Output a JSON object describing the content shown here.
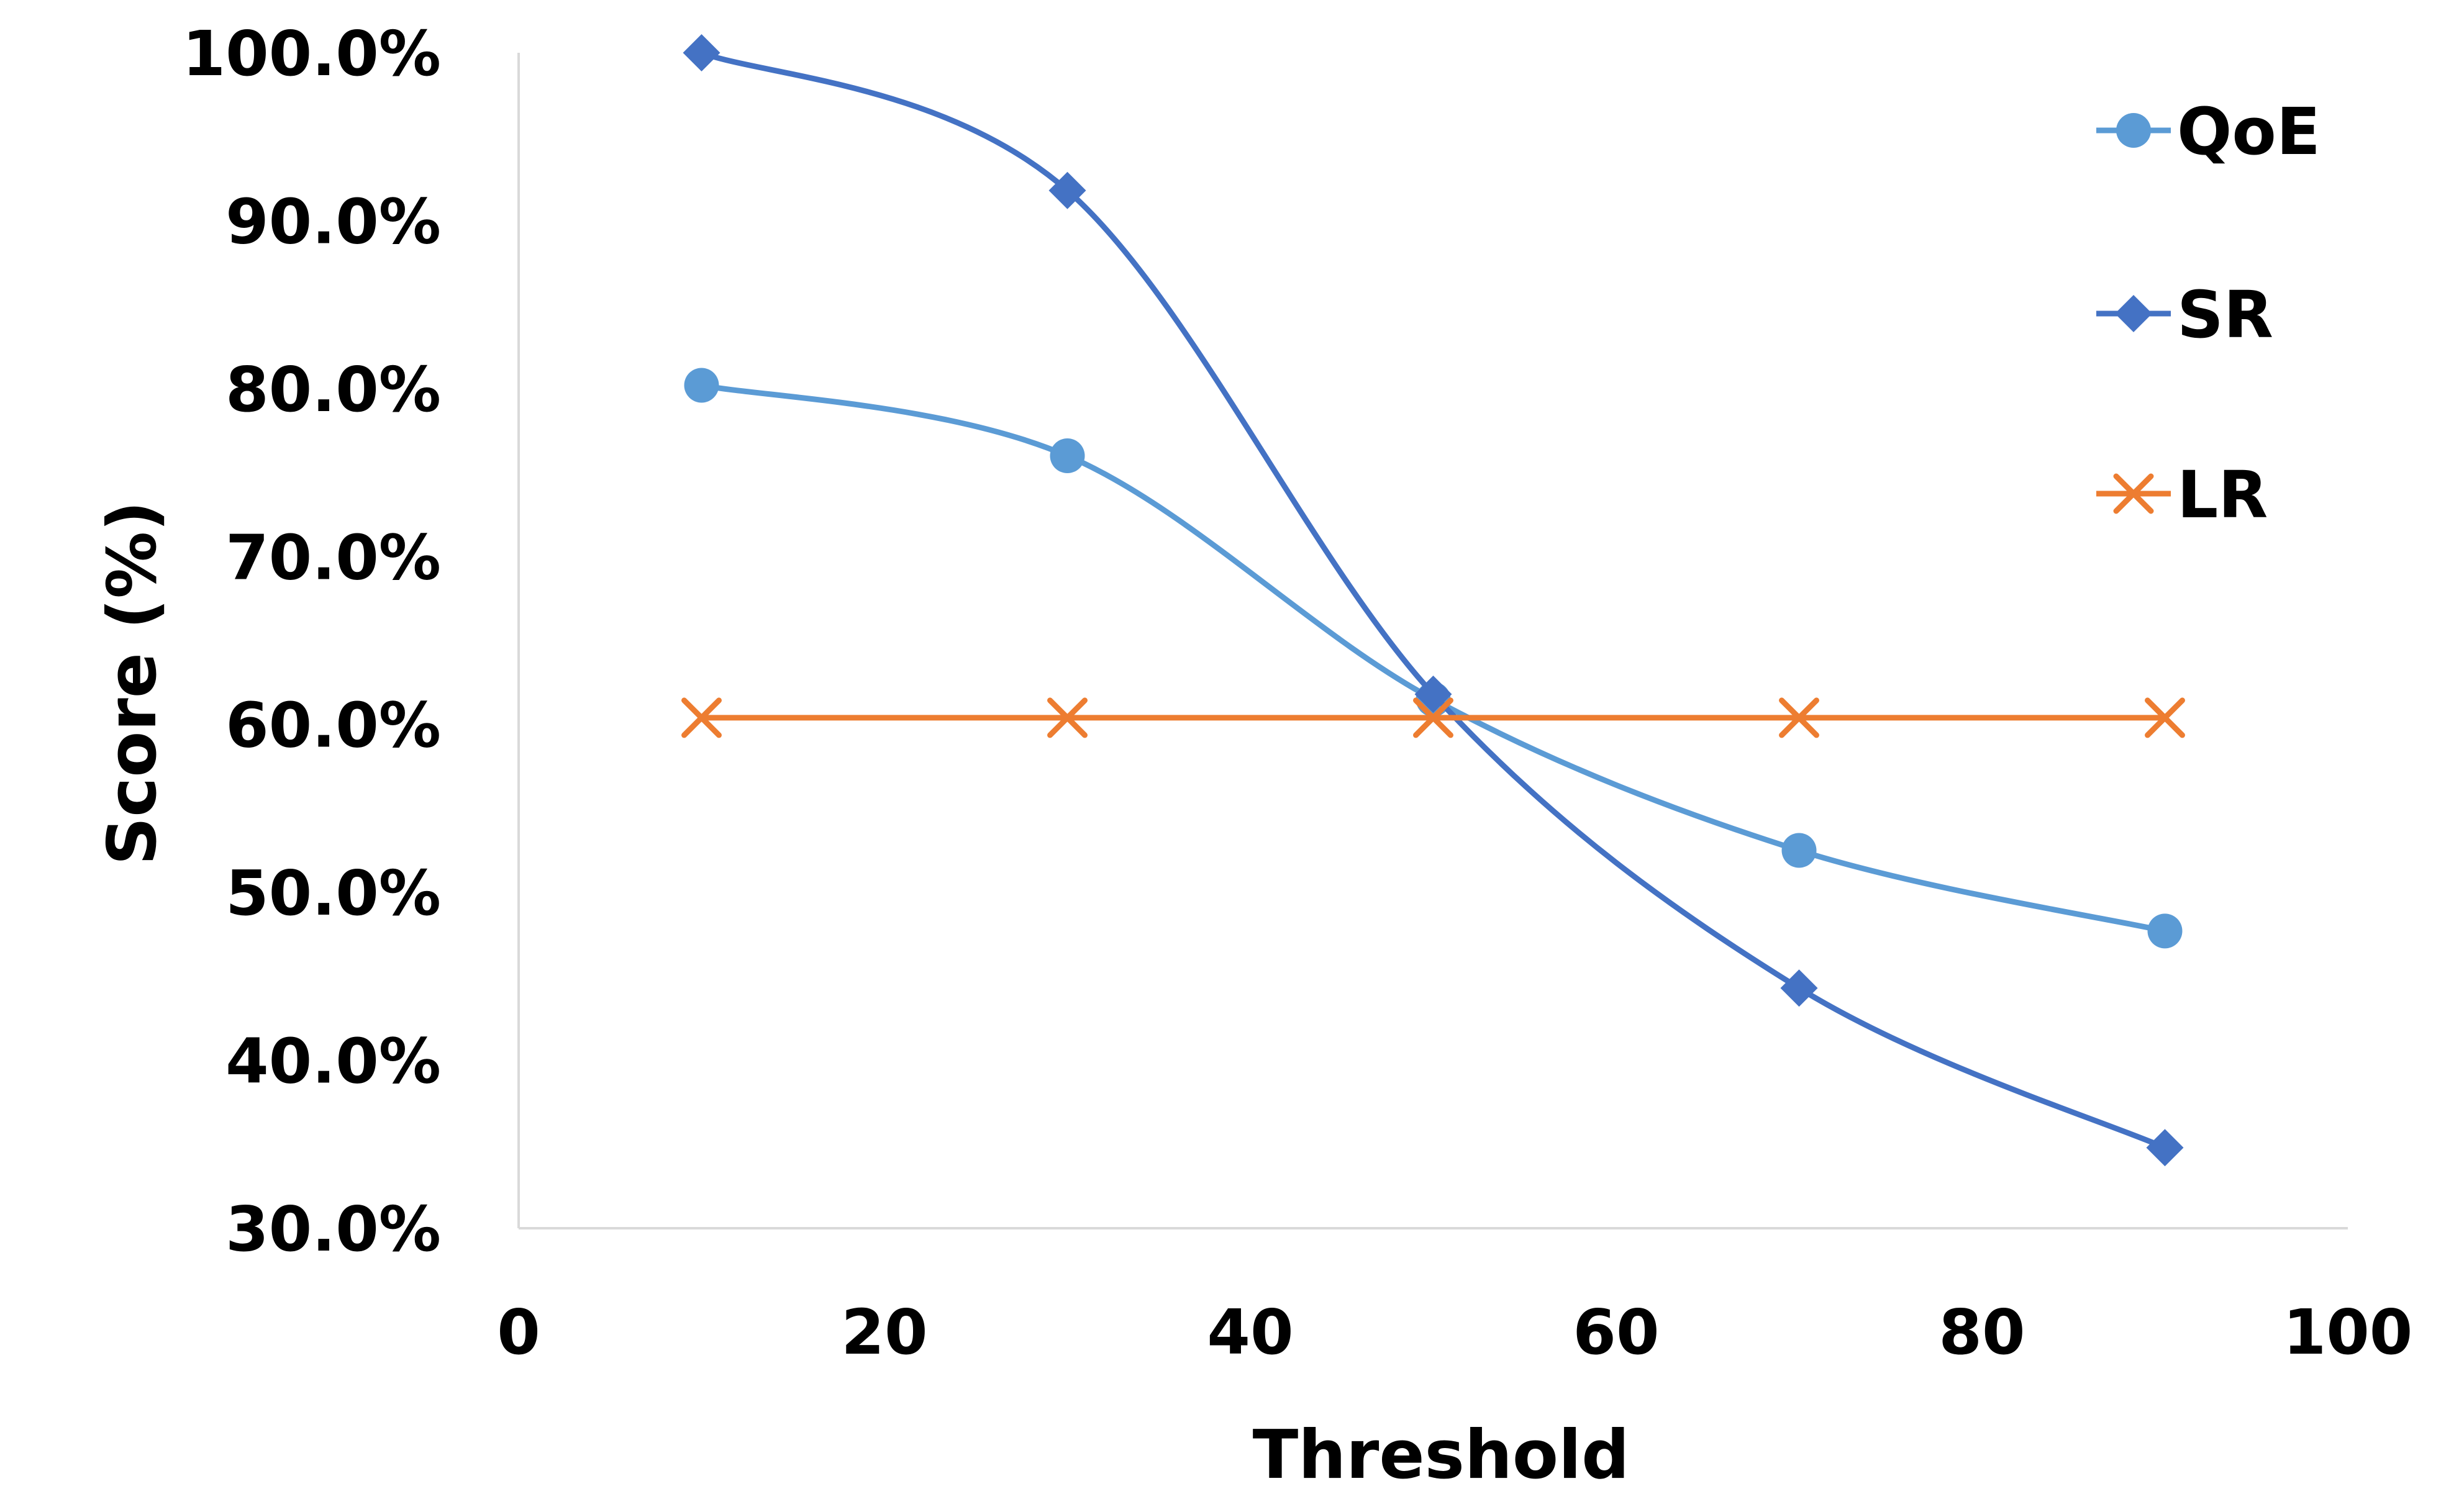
{
  "chart_data": {
    "type": "line",
    "title": "",
    "xlabel": "Threshold",
    "ylabel": "Score (%)",
    "xlim": [
      0,
      100
    ],
    "ylim": [
      30,
      100
    ],
    "x_ticks": [
      "0",
      "20",
      "40",
      "60",
      "80",
      "100"
    ],
    "y_ticks": [
      "30.0%",
      "40.0%",
      "50.0%",
      "60.0%",
      "70.0%",
      "80.0%",
      "90.0%",
      "100.0%"
    ],
    "grid": false,
    "smooth": true,
    "legend_position": "top-right",
    "x": [
      10,
      30,
      50,
      70,
      90
    ],
    "series": [
      {
        "name": "QoE",
        "marker": "circle",
        "color": "#5B9BD5",
        "values": [
          80.2,
          76.0,
          61.5,
          52.5,
          47.7
        ]
      },
      {
        "name": "SR",
        "marker": "diamond",
        "color": "#4472C4",
        "values": [
          100.0,
          91.8,
          61.8,
          44.3,
          34.8
        ]
      },
      {
        "name": "LR",
        "marker": "x",
        "color": "#ED7D31",
        "values": [
          60.4,
          60.4,
          60.4,
          60.4,
          60.4
        ]
      }
    ]
  }
}
